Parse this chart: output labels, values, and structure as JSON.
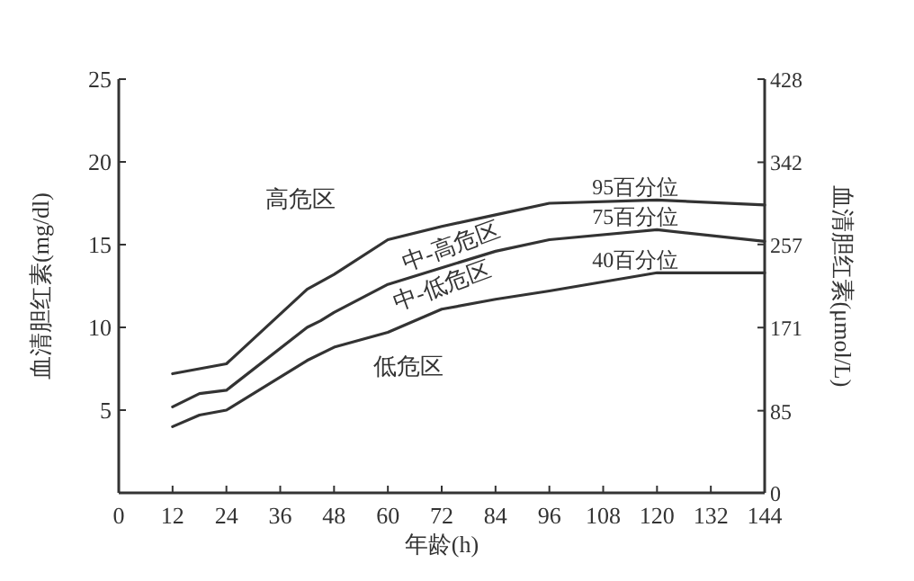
{
  "chart_data": {
    "type": "line",
    "xlabel": "年龄(h)",
    "ylabel": "血清胆红素(mg/dl)",
    "y2label": "血清胆红素(μmol/L)",
    "xlim": [
      0,
      144
    ],
    "xticks": [
      0,
      12,
      24,
      36,
      48,
      60,
      72,
      84,
      96,
      108,
      120,
      132,
      144
    ],
    "ylim": [
      0,
      25
    ],
    "yticks": [
      5,
      10,
      15,
      20,
      25
    ],
    "y2lim": [
      0,
      428
    ],
    "y2ticks": [
      0,
      85,
      171,
      257,
      342,
      428
    ],
    "grid": false,
    "marker": "none",
    "line_style": "solid",
    "series": [
      {
        "name": "95百分位",
        "color": "#333333",
        "x": [
          12,
          24,
          42,
          48,
          60,
          72,
          84,
          96,
          120,
          144
        ],
        "values": [
          7.2,
          7.8,
          12.3,
          13.2,
          15.3,
          16.1,
          16.8,
          17.5,
          17.7,
          17.4
        ]
      },
      {
        "name": "75百分位",
        "color": "#333333",
        "x": [
          12,
          18,
          24,
          42,
          45,
          48,
          60,
          72,
          84,
          96,
          120,
          144
        ],
        "values": [
          5.2,
          6.0,
          6.2,
          10.0,
          10.4,
          10.9,
          12.6,
          13.6,
          14.6,
          15.3,
          15.9,
          15.2
        ]
      },
      {
        "name": "40百分位",
        "color": "#333333",
        "x": [
          12,
          18,
          24,
          42,
          48,
          60,
          72,
          84,
          96,
          120,
          144
        ],
        "values": [
          4.0,
          4.7,
          5.0,
          8.0,
          8.8,
          9.7,
          11.1,
          11.7,
          12.2,
          13.3,
          13.3
        ]
      }
    ],
    "annotations": [
      "高危区",
      "中-高危区",
      "中-低危区",
      "低危区"
    ]
  }
}
